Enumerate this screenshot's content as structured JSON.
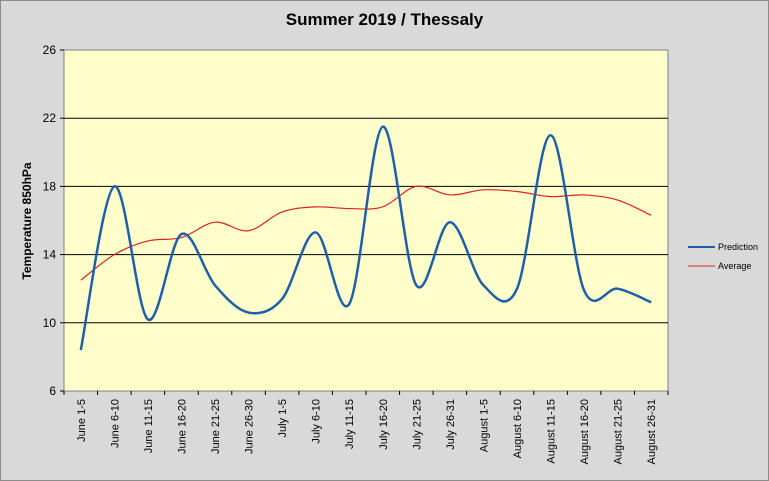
{
  "chart_data": {
    "type": "line",
    "title": "Summer 2019 / Thessaly",
    "xlabel": "",
    "ylabel": "Temperature 850hPa",
    "ylim": [
      6,
      26
    ],
    "yticks": [
      6,
      10,
      14,
      18,
      22,
      26
    ],
    "grid": true,
    "legend_position": "right",
    "background_color": "#ffffcc",
    "categories": [
      "June 1-5",
      "June 6-10",
      "June 11-15",
      "June 16-20",
      "June 21-25",
      "June 26-30",
      "July 1-5",
      "July 6-10",
      "July 11-15",
      "July 16-20",
      "July 21-25",
      "July 26-31",
      "August 1-5",
      "August 6-10",
      "August 11-15",
      "August 16-20",
      "August 21-25",
      "August 26-31"
    ],
    "series": [
      {
        "name": "Prediction",
        "color": "#1f5fa8",
        "values": [
          8.4,
          18.0,
          10.2,
          15.2,
          12.2,
          10.6,
          11.4,
          15.3,
          11.1,
          21.5,
          12.2,
          15.9,
          12.2,
          12.0,
          21.0,
          11.9,
          12.0,
          11.2
        ]
      },
      {
        "name": "Average",
        "color": "#e02020",
        "values": [
          12.5,
          14.0,
          14.8,
          15.0,
          15.9,
          15.4,
          16.5,
          16.8,
          16.7,
          16.8,
          18.0,
          17.5,
          17.8,
          17.7,
          17.4,
          17.5,
          17.2,
          16.3
        ]
      }
    ]
  }
}
